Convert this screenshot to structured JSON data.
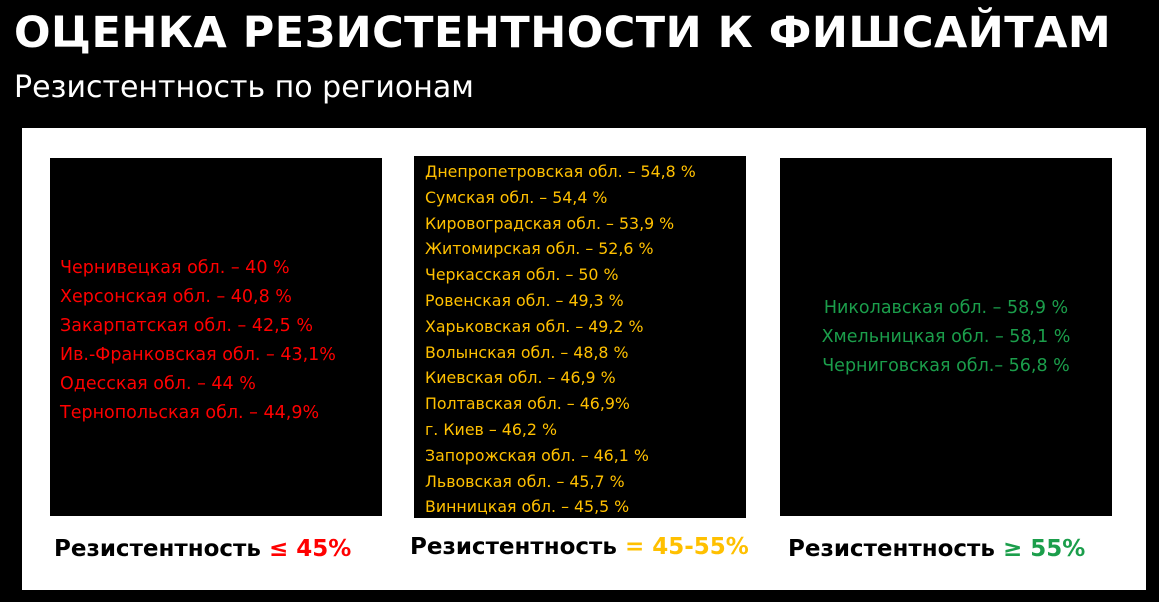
{
  "title": "ОЦЕНКА РЕЗИСТЕНТНОСТИ К ФИШСАЙТАМ",
  "subtitle": "Резистентность по регионам",
  "colors": {
    "low": "#ff0000",
    "mid": "#ffc000",
    "high": "#1b9e4b"
  },
  "groups": [
    {
      "items": [
        "Чернивецкая обл. – 40 %",
        "Херсонская обл. – 40,8 %",
        "Закарпатская обл. – 42,5 %",
        "Ив.-Франковская обл. – 43,1%",
        "Одесская обл. – 44 %",
        "Тернопольская обл. – 44,9%"
      ],
      "legend_label": "Резистентность",
      "legend_threshold": "≤ 45%"
    },
    {
      "items": [
        "Днепропетровская обл. – 54,8 %",
        "Сумская обл. – 54,4 %",
        "Кировоградская обл. – 53,9 %",
        "Житомирская обл. – 52,6 %",
        "Черкасская обл. – 50 %",
        "Ровенская обл. – 49,3 %",
        "Харьковская обл. – 49,2 %",
        "Волынская обл. – 48,8 %",
        "Киевская обл. – 46,9 %",
        "Полтавская обл. – 46,9%",
        "г. Киев – 46,2 %",
        "Запорожская обл. – 46,1 %",
        "Львовская обл. – 45,7 %",
        "Винницкая обл. – 45,5 %"
      ],
      "legend_label": "Резистентность",
      "legend_threshold": "= 45-55%"
    },
    {
      "items": [
        "Николавская обл. – 58,9 %",
        "Хмельницкая обл. – 58,1 %",
        "Черниговская обл.– 56,8 %"
      ],
      "legend_label": "Резистентность",
      "legend_threshold": "≥ 55%"
    }
  ]
}
